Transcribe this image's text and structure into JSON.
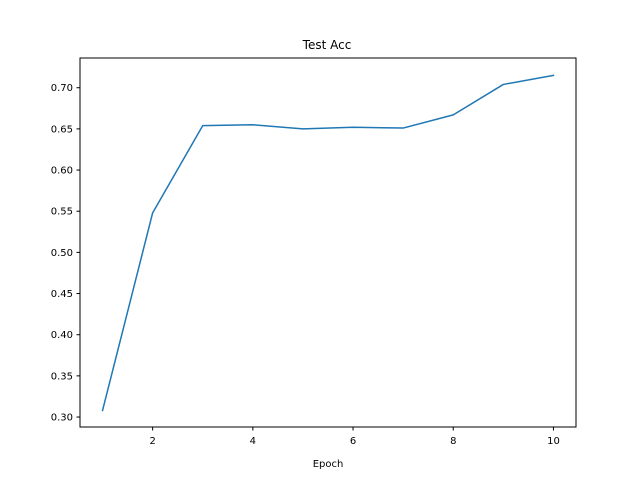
{
  "chart_data": {
    "type": "line",
    "title": "Test Acc",
    "xlabel": "Epoch",
    "ylabel": "",
    "xlim": [
      0.55,
      10.45
    ],
    "ylim": [
      0.2879,
      0.7361
    ],
    "xticks": [
      2,
      4,
      6,
      8,
      10
    ],
    "yticks": [
      0.3,
      0.35,
      0.4,
      0.45,
      0.5,
      0.55,
      0.6,
      0.65,
      0.7
    ],
    "ytick_decimals": 2,
    "grid": false,
    "legend": "none",
    "series": [
      {
        "color": "#1f77b4",
        "x": [
          1,
          2,
          3,
          4,
          5,
          6,
          7,
          8,
          9,
          10
        ],
        "y": [
          0.308,
          0.548,
          0.654,
          0.655,
          0.65,
          0.652,
          0.651,
          0.667,
          0.704,
          0.715
        ]
      }
    ]
  }
}
